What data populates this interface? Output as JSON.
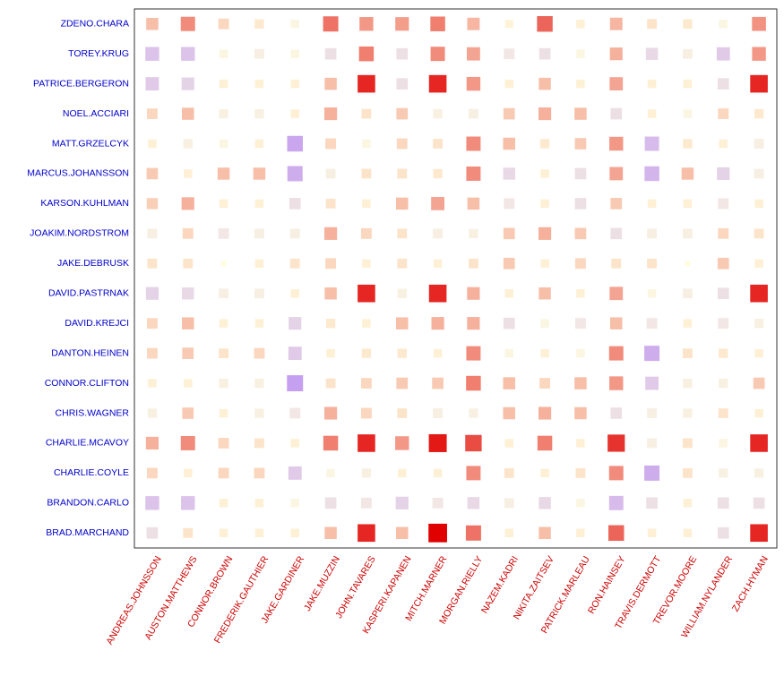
{
  "chart_data": {
    "type": "heatmap",
    "title": "",
    "xlabel": "",
    "ylabel": "",
    "encoding": "tile color (orange-red = positive, purple = negative) and tile size = magnitude",
    "grid": false,
    "legend": "none",
    "colors": {
      "positive": "#e00000",
      "negative": "#a66cf8",
      "neutral": "#fffde0",
      "row_label": "#0000cc",
      "col_label": "#cc0000",
      "frame": "#333333"
    },
    "x": [
      "ANDREAS.JOHNSSON",
      "AUSTON.MATTHEWS",
      "CONNOR.BROWN",
      "FREDERIK.GAUTHIER",
      "JAKE.GARDINER",
      "JAKE.MUZZIN",
      "JOHN.TAVARES",
      "KASPERI.KAPANEN",
      "MITCH.MARNER",
      "MORGAN.RIELLY",
      "NAZEM.KADRI",
      "NIKITA.ZAITSEV",
      "PATRICK.MARLEAU",
      "RON.HAINSEY",
      "TRAVIS.DERMOTT",
      "TREVOR.MOORE",
      "WILLIAM.NYLANDER",
      "ZACH.HYMAN"
    ],
    "y": [
      "ZDENO.CHARA",
      "TOREY.KRUG",
      "PATRICE.BERGERON",
      "NOEL.ACCIARI",
      "MATT.GRZELCYK",
      "MARCUS.JOHANSSON",
      "KARSON.KUHLMAN",
      "JOAKIM.NORDSTROM",
      "JAKE.DEBRUSK",
      "DAVID.PASTRNAK",
      "DAVID.KREJCI",
      "DANTON.HEINEN",
      "CONNOR.CLIFTON",
      "CHRIS.WAGNER",
      "CHARLIE.MCAVOY",
      "CHARLIE.COYLE",
      "BRANDON.CARLO",
      "BRAD.MARCHAND"
    ],
    "values": [
      [
        0.25,
        0.45,
        0.15,
        0.08,
        -0.05,
        0.55,
        0.4,
        0.38,
        0.5,
        0.28,
        0.04,
        0.6,
        0.05,
        0.28,
        0.1,
        0.08,
        -0.05,
        0.42
      ],
      [
        -0.4,
        -0.4,
        -0.05,
        -0.1,
        -0.05,
        -0.2,
        0.5,
        -0.2,
        0.45,
        0.35,
        -0.15,
        -0.2,
        -0.05,
        0.3,
        -0.25,
        -0.1,
        -0.35,
        0.4
      ],
      [
        -0.35,
        -0.3,
        0.05,
        0.05,
        0.05,
        0.25,
        0.85,
        -0.2,
        0.85,
        0.4,
        0.05,
        0.25,
        0.05,
        0.35,
        0.05,
        0.05,
        -0.2,
        0.85
      ],
      [
        0.15,
        0.25,
        -0.08,
        -0.08,
        0.05,
        0.3,
        0.1,
        0.2,
        -0.08,
        -0.1,
        0.2,
        0.3,
        0.25,
        -0.2,
        0.05,
        -0.05,
        0.15,
        0.08
      ],
      [
        0.05,
        -0.08,
        -0.05,
        0.05,
        -0.6,
        0.15,
        -0.05,
        0.15,
        0.1,
        0.45,
        0.25,
        0.08,
        0.2,
        0.4,
        -0.45,
        0.08,
        0.05,
        -0.1
      ],
      [
        0.2,
        0.05,
        0.25,
        0.25,
        -0.55,
        -0.1,
        0.1,
        0.1,
        0.08,
        0.45,
        -0.25,
        0.05,
        -0.2,
        0.35,
        -0.5,
        0.25,
        -0.3,
        -0.1
      ],
      [
        0.18,
        0.3,
        0.05,
        0.05,
        -0.2,
        0.1,
        0.05,
        0.25,
        0.35,
        0.25,
        -0.15,
        0.05,
        -0.2,
        0.2,
        0.05,
        0.05,
        -0.15,
        0.05
      ],
      [
        -0.1,
        0.15,
        -0.15,
        -0.1,
        -0.1,
        0.3,
        0.15,
        0.1,
        -0.1,
        -0.08,
        0.2,
        0.3,
        0.2,
        -0.2,
        -0.1,
        -0.1,
        0.15,
        0.1
      ],
      [
        0.1,
        0.1,
        0.0,
        0.05,
        0.1,
        0.15,
        0.05,
        0.1,
        0.05,
        0.1,
        0.2,
        0.05,
        0.15,
        0.1,
        0.1,
        0.0,
        0.2,
        0.05
      ],
      [
        -0.3,
        -0.25,
        -0.1,
        -0.1,
        0.05,
        0.25,
        0.85,
        -0.08,
        0.85,
        0.3,
        0.05,
        0.25,
        0.05,
        0.35,
        -0.05,
        -0.1,
        -0.2,
        0.85
      ],
      [
        0.15,
        0.25,
        0.05,
        0.05,
        -0.3,
        0.08,
        0.05,
        0.25,
        0.3,
        0.3,
        -0.2,
        -0.05,
        -0.15,
        0.25,
        -0.15,
        0.05,
        -0.15,
        -0.08
      ],
      [
        0.15,
        0.2,
        0.1,
        0.15,
        -0.35,
        0.05,
        0.08,
        0.08,
        0.05,
        0.45,
        -0.05,
        0.05,
        -0.05,
        0.45,
        -0.55,
        0.1,
        0.08,
        0.05
      ],
      [
        0.05,
        0.05,
        -0.08,
        -0.08,
        -0.65,
        0.1,
        0.15,
        0.2,
        0.2,
        0.5,
        0.25,
        0.15,
        0.25,
        0.4,
        -0.35,
        -0.08,
        -0.08,
        0.2
      ],
      [
        -0.08,
        0.2,
        0.05,
        -0.08,
        -0.15,
        0.3,
        0.15,
        0.1,
        -0.1,
        -0.08,
        0.25,
        0.3,
        0.25,
        -0.2,
        -0.1,
        -0.08,
        0.1,
        0.05
      ],
      [
        0.3,
        0.45,
        0.15,
        0.1,
        0.05,
        0.5,
        0.85,
        0.4,
        0.9,
        0.7,
        0.05,
        0.5,
        0.05,
        0.8,
        -0.1,
        0.1,
        -0.05,
        0.85
      ],
      [
        0.15,
        0.05,
        0.15,
        0.15,
        -0.35,
        -0.05,
        -0.08,
        0.05,
        0.05,
        0.45,
        0.1,
        0.05,
        0.1,
        0.45,
        -0.55,
        0.1,
        -0.08,
        -0.08
      ],
      [
        -0.4,
        -0.4,
        0.05,
        0.05,
        -0.05,
        -0.2,
        -0.15,
        -0.3,
        -0.15,
        -0.25,
        -0.1,
        -0.25,
        -0.05,
        -0.45,
        -0.2,
        0.05,
        -0.2,
        -0.2
      ],
      [
        -0.2,
        0.1,
        0.05,
        0.05,
        0.05,
        0.25,
        0.85,
        0.25,
        1.0,
        0.55,
        0.05,
        0.25,
        0.05,
        0.6,
        0.05,
        0.05,
        -0.2,
        0.85
      ]
    ]
  }
}
